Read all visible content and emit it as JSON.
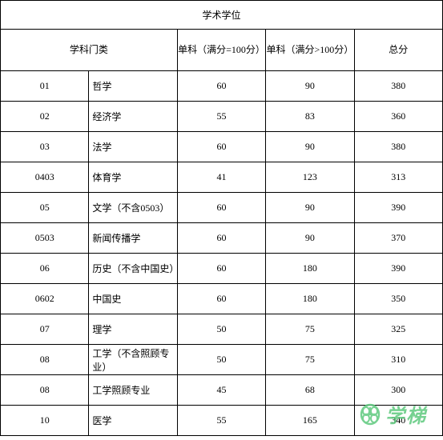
{
  "title": "学术学位",
  "headers": {
    "category": "学科门类",
    "score1": "单科（满分=100分）",
    "score2": "单科（满分>100分）",
    "total": "总分"
  },
  "rows": [
    {
      "code": "01",
      "name": "哲学",
      "score1": "60",
      "score2": "90",
      "total": "380"
    },
    {
      "code": "02",
      "name": "经济学",
      "score1": "55",
      "score2": "83",
      "total": "360"
    },
    {
      "code": "03",
      "name": "法学",
      "score1": "60",
      "score2": "90",
      "total": "380"
    },
    {
      "code": "0403",
      "name": "体育学",
      "score1": "41",
      "score2": "123",
      "total": "313"
    },
    {
      "code": "05",
      "name": "文学（不含0503）",
      "score1": "60",
      "score2": "90",
      "total": "390"
    },
    {
      "code": "0503",
      "name": "新闻传播学",
      "score1": "60",
      "score2": "90",
      "total": "370"
    },
    {
      "code": "06",
      "name": "历史（不含中国史）",
      "score1": "60",
      "score2": "180",
      "total": "390"
    },
    {
      "code": "0602",
      "name": "中国史",
      "score1": "60",
      "score2": "180",
      "total": "350"
    },
    {
      "code": "07",
      "name": "理学",
      "score1": "50",
      "score2": "75",
      "total": "325"
    },
    {
      "code": "08",
      "name": "工学（不含照顾专业）",
      "score1": "50",
      "score2": "75",
      "total": "310"
    },
    {
      "code": "08",
      "name": "工学照顾专业",
      "score1": "45",
      "score2": "68",
      "total": "300"
    },
    {
      "code": "10",
      "name": "医学",
      "score1": "55",
      "score2": "165",
      "total": "340"
    }
  ],
  "watermark": {
    "text": "学梯",
    "color": "#5fc97e"
  }
}
